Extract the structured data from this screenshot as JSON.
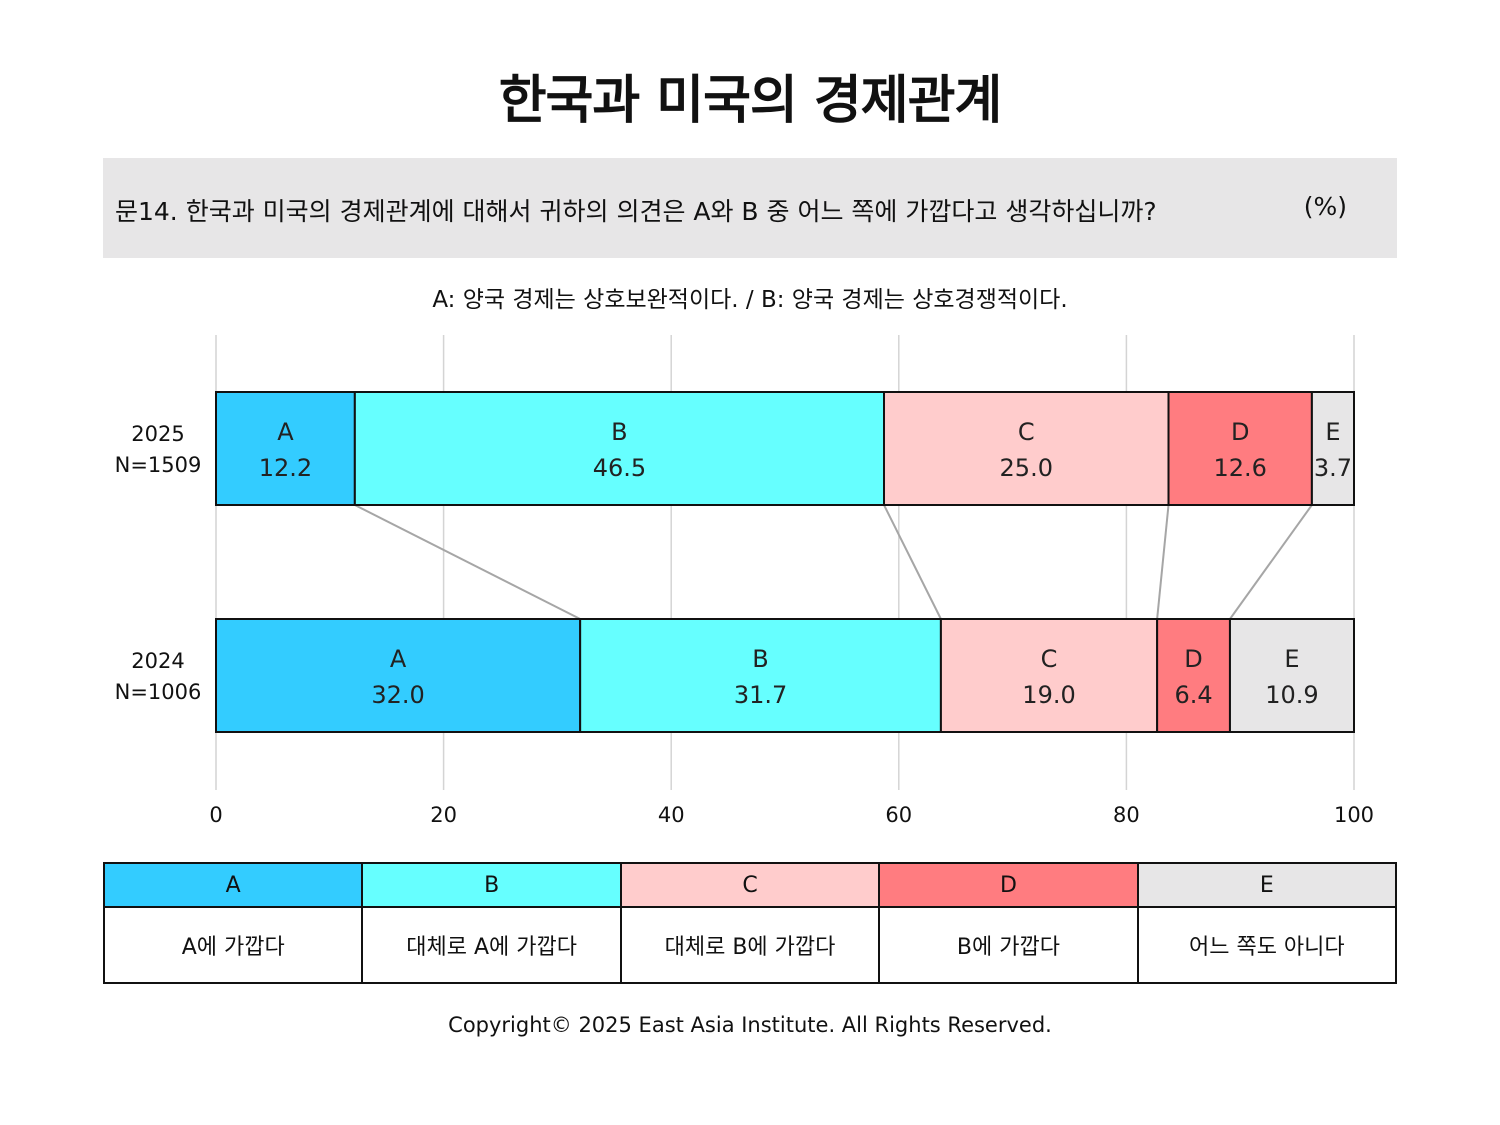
{
  "title": "한국과 미국의 경제관계",
  "question": {
    "text": "문14. 한국과 미국의 경제관계에 대해서 귀하의 의견은 A와 B 중 어느 쪽에 가깝다고 생각하십니까?",
    "unit": "(%)"
  },
  "subtitle": "A: 양국 경제는 상호보완적이다. / B: 양국 경제는 상호경쟁적이다.",
  "colors": {
    "A": "#33ccff",
    "B": "#66ffff",
    "C": "#ffcccc",
    "D": "#ff7c80",
    "E": "#e7e6e7"
  },
  "chart_data": {
    "type": "bar",
    "orientation": "horizontal",
    "stacked": true,
    "xlim": [
      0,
      100
    ],
    "xticks": [
      0,
      20,
      40,
      60,
      80,
      100
    ],
    "grid": true,
    "categories": [
      {
        "year": "2025",
        "n": "N=1509"
      },
      {
        "year": "2024",
        "n": "N=1006"
      }
    ],
    "series": [
      {
        "name": "A",
        "values": [
          12.2,
          32.0
        ],
        "labels": [
          "12.2",
          "32.0"
        ]
      },
      {
        "name": "B",
        "values": [
          46.5,
          31.7
        ],
        "labels": [
          "46.5",
          "31.7"
        ]
      },
      {
        "name": "C",
        "values": [
          25.0,
          19.0
        ],
        "labels": [
          "25.0",
          "19.0"
        ]
      },
      {
        "name": "D",
        "values": [
          12.6,
          6.4
        ],
        "labels": [
          "12.6",
          "6.4"
        ]
      },
      {
        "name": "E",
        "values": [
          3.7,
          10.9
        ],
        "labels": [
          "3.7",
          "10.9"
        ]
      }
    ]
  },
  "legend": [
    {
      "key": "A",
      "label": "A에 가깝다"
    },
    {
      "key": "B",
      "label": "대체로 A에 가깝다"
    },
    {
      "key": "C",
      "label": "대체로 B에 가깝다"
    },
    {
      "key": "D",
      "label": "B에 가깝다"
    },
    {
      "key": "E",
      "label": "어느 쪽도 아니다"
    }
  ],
  "copyright": "Copyright© 2025 East Asia Institute. All Rights Reserved."
}
